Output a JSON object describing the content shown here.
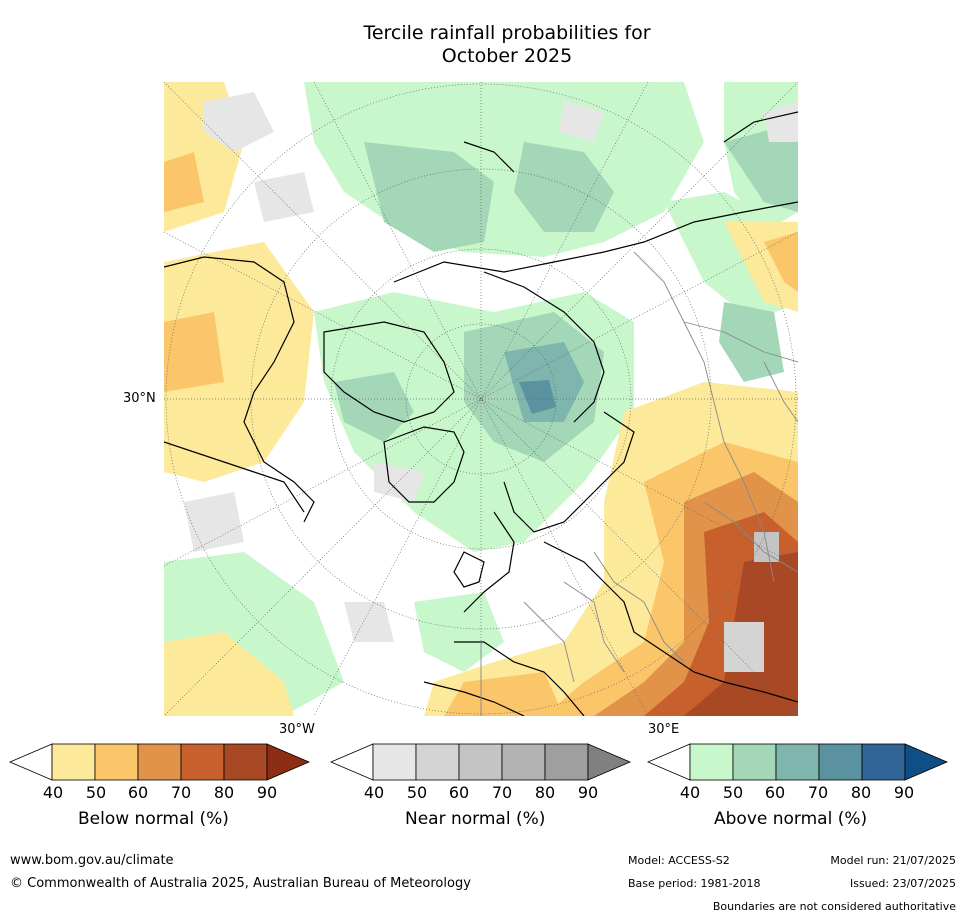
{
  "title_line1": "Tercile rainfall probabilities for",
  "title_line2": "October 2025",
  "map": {
    "lat_label": "30°N",
    "lon_label_left": "30°W",
    "lon_label_right": "30°E"
  },
  "colorbars": [
    {
      "id": "below",
      "title": "Below normal (%)",
      "ticks": [
        "40",
        "50",
        "60",
        "70",
        "80",
        "90"
      ],
      "colors": [
        "#ffffff",
        "#fde99a",
        "#fbc66a",
        "#e2934a",
        "#c8602e",
        "#a84824",
        "#8c2d14"
      ]
    },
    {
      "id": "near",
      "title": "Near normal (%)",
      "ticks": [
        "40",
        "50",
        "60",
        "70",
        "80",
        "90"
      ],
      "colors": [
        "#ffffff",
        "#e6e6e6",
        "#d4d4d4",
        "#c4c4c4",
        "#b2b2b2",
        "#9f9f9f",
        "#808080"
      ]
    },
    {
      "id": "above",
      "title": "Above normal (%)",
      "ticks": [
        "40",
        "50",
        "60",
        "70",
        "80",
        "90"
      ],
      "colors": [
        "#ffffff",
        "#c9f7cc",
        "#a4d6b8",
        "#7eb5ad",
        "#5a92a0",
        "#326597",
        "#0f4f86"
      ]
    }
  ],
  "footer": {
    "website": "www.bom.gov.au/climate",
    "copyright": "© Commonwealth of Australia 2025, Australian Bureau of Meteorology",
    "model": "Model: ACCESS-S2",
    "base_period": "Base period: 1981-2018",
    "model_run": "Model run: 21/07/2025",
    "issued": "Issued: 23/07/2025",
    "disclaimer": "Boundaries are not considered authoritative"
  }
}
